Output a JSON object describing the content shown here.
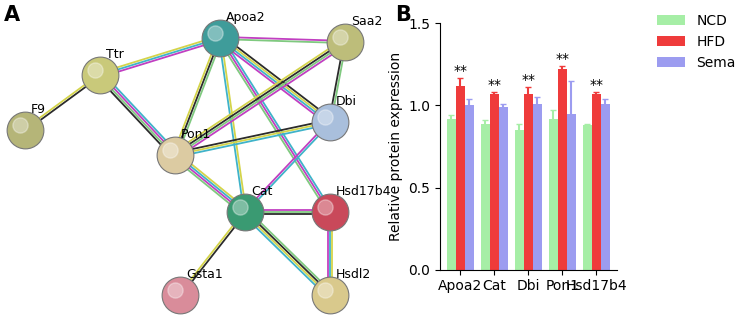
{
  "panel_labels": [
    "A",
    "B"
  ],
  "network": {
    "nodes": [
      {
        "label": "Ttr",
        "color": "#c9c97a"
      },
      {
        "label": "F9",
        "color": "#b5b578"
      },
      {
        "label": "Apoa2",
        "color": "#3f9c9a"
      },
      {
        "label": "Saa2",
        "color": "#bdbd7a"
      },
      {
        "label": "Dbi",
        "color": "#a9bfdc"
      },
      {
        "label": "Pon1",
        "color": "#dccba2"
      },
      {
        "label": "Cat",
        "color": "#3a9a72"
      },
      {
        "label": "Hsd17b4",
        "color": "#c9495a"
      },
      {
        "label": "Gsta1",
        "color": "#d98c9a"
      },
      {
        "label": "Hsdl2",
        "color": "#d9c98c"
      }
    ],
    "edges": [
      [
        "Ttr",
        "F9"
      ],
      [
        "Ttr",
        "Apoa2"
      ],
      [
        "Ttr",
        "Pon1"
      ],
      [
        "Apoa2",
        "Saa2"
      ],
      [
        "Apoa2",
        "Pon1"
      ],
      [
        "Apoa2",
        "Dbi"
      ],
      [
        "Apoa2",
        "Cat"
      ],
      [
        "Apoa2",
        "Hsd17b4"
      ],
      [
        "Saa2",
        "Pon1"
      ],
      [
        "Saa2",
        "Dbi"
      ],
      [
        "Pon1",
        "Dbi"
      ],
      [
        "Pon1",
        "Cat"
      ],
      [
        "Dbi",
        "Cat"
      ],
      [
        "Cat",
        "Hsd17b4"
      ],
      [
        "Cat",
        "Hsdl2"
      ],
      [
        "Cat",
        "Gsta1"
      ],
      [
        "Hsd17b4",
        "Hsdl2"
      ]
    ]
  },
  "chart_data": {
    "type": "bar",
    "categories": [
      "Apoa2",
      "Cat",
      "Dbi",
      "Pon1",
      "Hsd17b4"
    ],
    "ylabel": "Relative protein expression",
    "ylim": [
      0.0,
      1.5
    ],
    "yticks": [
      0.0,
      0.5,
      1.0,
      1.5
    ],
    "legend": "upper right",
    "series": [
      {
        "name": "NCD",
        "color": "#a6eea6",
        "values": [
          0.92,
          0.89,
          0.85,
          0.92,
          0.88
        ],
        "errors": [
          0.02,
          0.02,
          0.04,
          0.05,
          0.01
        ]
      },
      {
        "name": "HFD",
        "color": "#ef3b3b",
        "values": [
          1.12,
          1.07,
          1.07,
          1.22,
          1.07
        ],
        "errors": [
          0.05,
          0.01,
          0.04,
          0.02,
          0.01
        ]
      },
      {
        "name": "Sema",
        "color": "#9c9cf0",
        "values": [
          1.0,
          0.99,
          1.01,
          0.95,
          1.01
        ],
        "errors": [
          0.04,
          0.02,
          0.04,
          0.2,
          0.03
        ]
      }
    ],
    "annotations": [
      {
        "category": "Apoa2",
        "series": "HFD",
        "text": "**"
      },
      {
        "category": "Cat",
        "series": "HFD",
        "text": "**"
      },
      {
        "category": "Dbi",
        "series": "HFD",
        "text": "**"
      },
      {
        "category": "Pon1",
        "series": "HFD",
        "text": "**"
      },
      {
        "category": "Hsd17b4",
        "series": "HFD",
        "text": "**"
      }
    ]
  }
}
